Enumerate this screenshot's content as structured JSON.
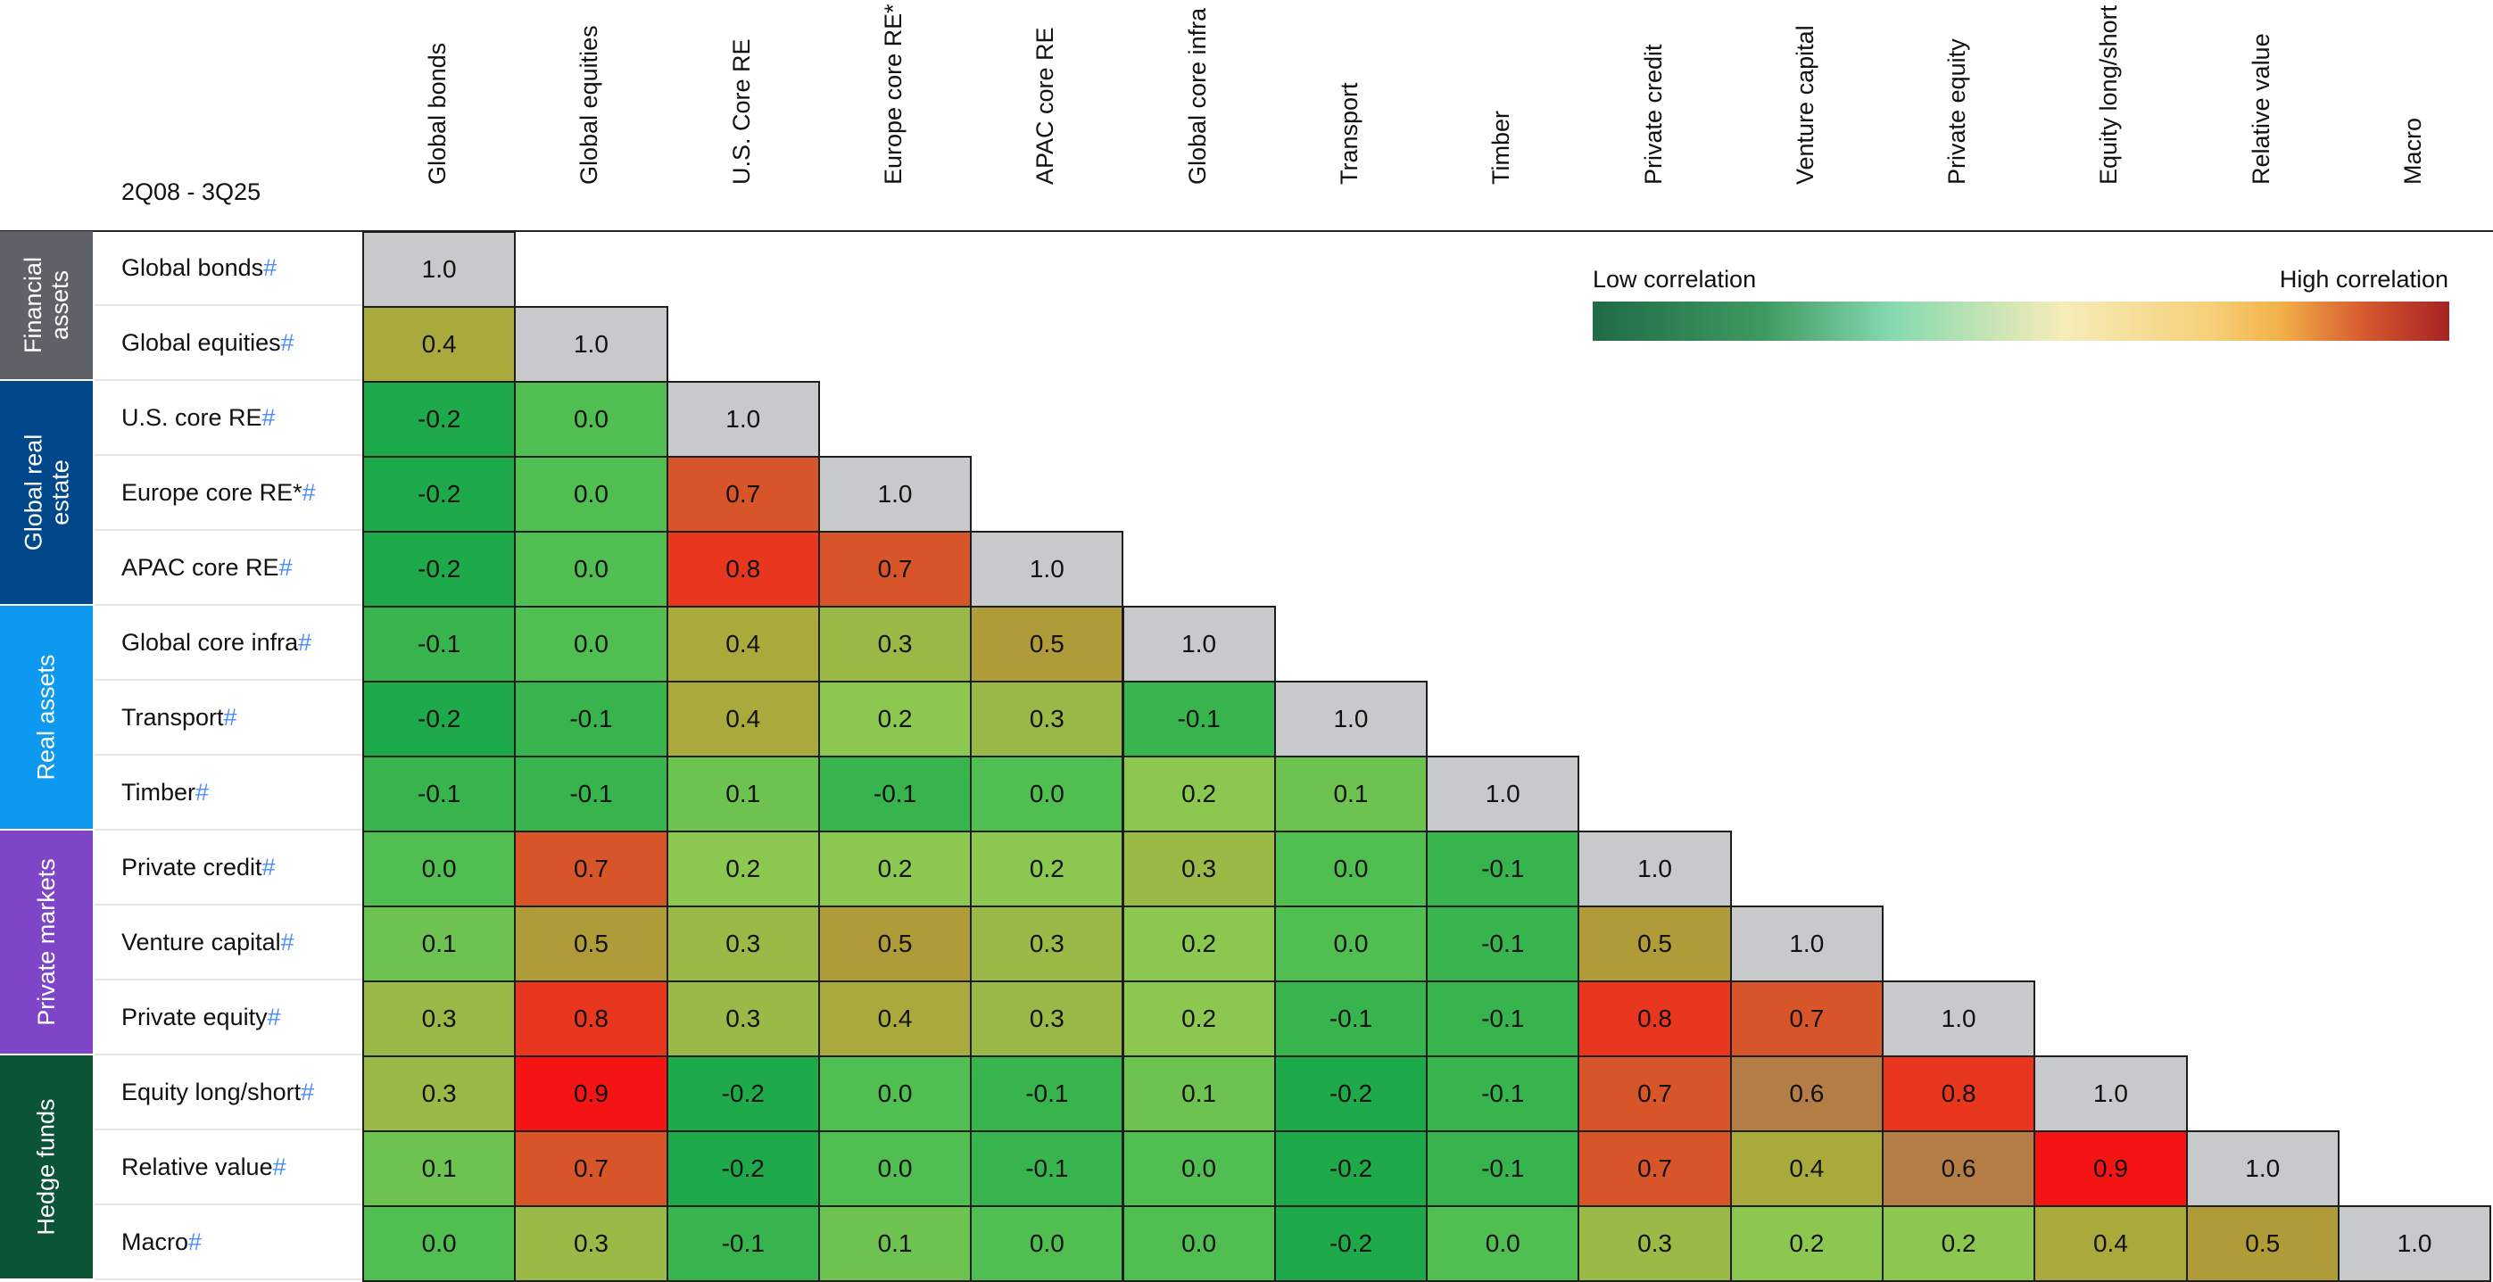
{
  "period_label": "2Q08 - 3Q25",
  "legend": {
    "low": "Low correlation",
    "high": "High correlation"
  },
  "groups": [
    {
      "label": "Financial assets",
      "lines": [
        "Financial",
        "assets"
      ],
      "rows": [
        0,
        1
      ],
      "color": "#5e6268"
    },
    {
      "label": "Global real estate",
      "lines": [
        "Global real",
        "estate"
      ],
      "rows": [
        2,
        4
      ],
      "color": "#00488a"
    },
    {
      "label": "Real assets",
      "lines": [
        "Real assets"
      ],
      "rows": [
        5,
        7
      ],
      "color": "#0d99f0"
    },
    {
      "label": "Private markets",
      "lines": [
        "Private markets"
      ],
      "rows": [
        8,
        10
      ],
      "color": "#7f45c8"
    },
    {
      "label": "Hedge funds",
      "lines": [
        "Hedge funds"
      ],
      "rows": [
        11,
        13
      ],
      "color": "#0b5536"
    }
  ],
  "chart_data": {
    "type": "heatmap",
    "title": "",
    "columns": [
      "Global bonds",
      "Global equities",
      "U.S. Core RE",
      "Europe core RE*",
      "APAC core RE",
      "Global core infra",
      "Transport",
      "Timber",
      "Private credit",
      "Venture capital",
      "Private equity",
      "Equity long/short",
      "Relative value",
      "Macro"
    ],
    "rows": [
      "Global bonds",
      "Global equities",
      "U.S. core RE",
      "Europe core RE*",
      "APAC core RE",
      "Global core infra",
      "Transport",
      "Timber",
      "Private credit",
      "Venture capital",
      "Private equity",
      "Equity long/short",
      "Relative value",
      "Macro"
    ],
    "row_marker": "#",
    "values": [
      [
        1.0
      ],
      [
        0.4,
        1.0
      ],
      [
        -0.2,
        0.0,
        1.0
      ],
      [
        -0.2,
        0.0,
        0.7,
        1.0
      ],
      [
        -0.2,
        0.0,
        0.8,
        0.7,
        1.0
      ],
      [
        -0.1,
        0.0,
        0.4,
        0.3,
        0.5,
        1.0
      ],
      [
        -0.2,
        -0.1,
        0.4,
        0.2,
        0.3,
        -0.1,
        1.0
      ],
      [
        -0.1,
        -0.1,
        0.1,
        -0.1,
        0.0,
        0.2,
        0.1,
        1.0
      ],
      [
        0.0,
        0.7,
        0.2,
        0.2,
        0.2,
        0.3,
        0.0,
        -0.1,
        1.0
      ],
      [
        0.1,
        0.5,
        0.3,
        0.5,
        0.3,
        0.2,
        0.0,
        -0.1,
        0.5,
        1.0
      ],
      [
        0.3,
        0.8,
        0.3,
        0.4,
        0.3,
        0.2,
        -0.1,
        -0.1,
        0.8,
        0.7,
        1.0
      ],
      [
        0.3,
        0.9,
        -0.2,
        0.0,
        -0.1,
        0.1,
        -0.2,
        -0.1,
        0.7,
        0.6,
        0.8,
        1.0
      ],
      [
        0.1,
        0.7,
        -0.2,
        0.0,
        -0.1,
        0.0,
        -0.2,
        -0.1,
        0.7,
        0.4,
        0.6,
        0.9,
        1.0
      ],
      [
        0.0,
        0.3,
        -0.1,
        0.1,
        0.0,
        0.0,
        -0.2,
        0.0,
        0.3,
        0.2,
        0.2,
        0.4,
        0.5,
        1.0
      ]
    ],
    "diagonal_color": "#c8c9cb",
    "color_scale": "green (low) to red (high)"
  }
}
